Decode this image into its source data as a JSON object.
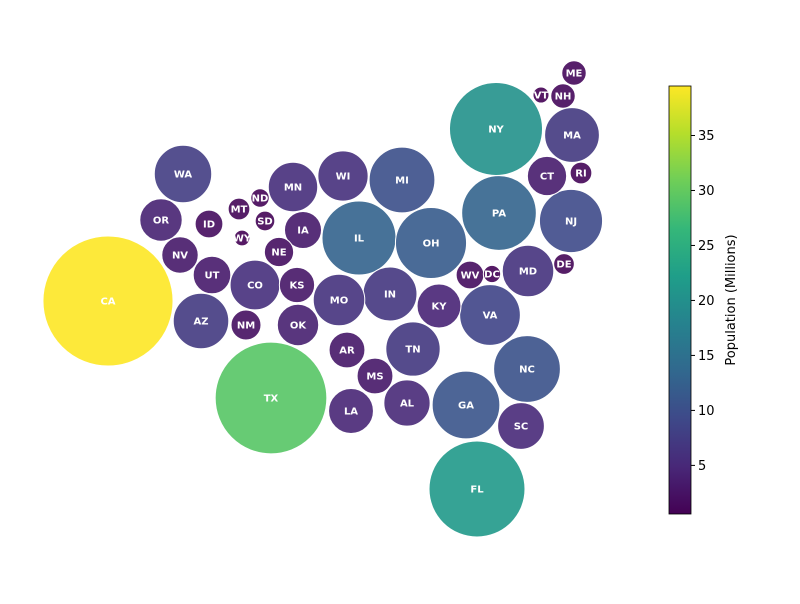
{
  "chart_data": {
    "type": "scatter",
    "subtype": "bubble",
    "title": "",
    "colorbar": {
      "label": "Population (Millions)",
      "ticks": [
        5,
        10,
        15,
        20,
        25,
        30,
        35
      ],
      "range": [
        0.58,
        39.5
      ],
      "colormap": "viridis"
    },
    "points": [
      {
        "state": "CA",
        "population": 39.5
      },
      {
        "state": "TX",
        "population": 29.1
      },
      {
        "state": "FL",
        "population": 21.5
      },
      {
        "state": "NY",
        "population": 20.2
      },
      {
        "state": "PA",
        "population": 13.0
      },
      {
        "state": "IL",
        "population": 12.8
      },
      {
        "state": "OH",
        "population": 11.8
      },
      {
        "state": "GA",
        "population": 10.7
      },
      {
        "state": "NC",
        "population": 10.4
      },
      {
        "state": "MI",
        "population": 10.1
      },
      {
        "state": "NJ",
        "population": 9.3
      },
      {
        "state": "VA",
        "population": 8.6
      },
      {
        "state": "WA",
        "population": 7.7
      },
      {
        "state": "AZ",
        "population": 7.2
      },
      {
        "state": "MA",
        "population": 7.0
      },
      {
        "state": "TN",
        "population": 6.9
      },
      {
        "state": "IN",
        "population": 6.8
      },
      {
        "state": "MD",
        "population": 6.2
      },
      {
        "state": "MO",
        "population": 6.2
      },
      {
        "state": "WI",
        "population": 5.9
      },
      {
        "state": "CO",
        "population": 5.8
      },
      {
        "state": "MN",
        "population": 5.7
      },
      {
        "state": "SC",
        "population": 5.1
      },
      {
        "state": "AL",
        "population": 5.0
      },
      {
        "state": "LA",
        "population": 4.7
      },
      {
        "state": "KY",
        "population": 4.5
      },
      {
        "state": "OR",
        "population": 4.2
      },
      {
        "state": "OK",
        "population": 4.0
      },
      {
        "state": "CT",
        "population": 3.6
      },
      {
        "state": "UT",
        "population": 3.3
      },
      {
        "state": "IA",
        "population": 3.2
      },
      {
        "state": "NV",
        "population": 3.1
      },
      {
        "state": "AR",
        "population": 3.0
      },
      {
        "state": "MS",
        "population": 3.0
      },
      {
        "state": "KS",
        "population": 2.9
      },
      {
        "state": "NM",
        "population": 2.1
      },
      {
        "state": "NE",
        "population": 2.0
      },
      {
        "state": "ID",
        "population": 1.8
      },
      {
        "state": "WV",
        "population": 1.8
      },
      {
        "state": "NH",
        "population": 1.4
      },
      {
        "state": "ME",
        "population": 1.4
      },
      {
        "state": "MT",
        "population": 1.1
      },
      {
        "state": "RI",
        "population": 1.1
      },
      {
        "state": "DE",
        "population": 1.0
      },
      {
        "state": "SD",
        "population": 0.9
      },
      {
        "state": "ND",
        "population": 0.8
      },
      {
        "state": "DC",
        "population": 0.7
      },
      {
        "state": "VT",
        "population": 0.6
      },
      {
        "state": "WY",
        "population": 0.58
      }
    ]
  }
}
